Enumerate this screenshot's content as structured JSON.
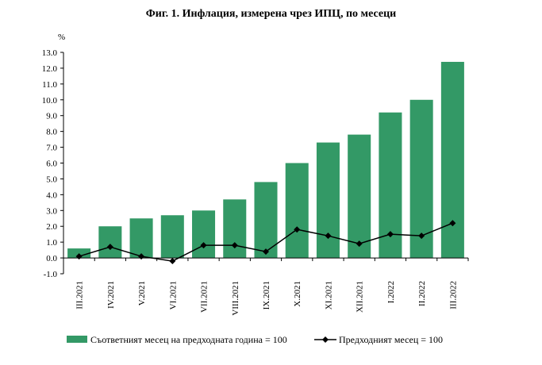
{
  "chart_data": {
    "type": "bar",
    "title": "Фиг. 1. Инфлация, измерена чрез ИПЦ, по месеци",
    "ylabel": "%",
    "ylim": [
      -1.0,
      13.0
    ],
    "yticks": [
      "-1.0",
      "0.0",
      "1.0",
      "2.0",
      "3.0",
      "4.0",
      "5.0",
      "6.0",
      "7.0",
      "8.0",
      "9.0",
      "10.0",
      "11.0",
      "12.0",
      "13.0"
    ],
    "categories": [
      "III.2021",
      "IV.2021",
      "V.2021",
      "VI.2021",
      "VII.2021",
      "VIII.2021",
      "IX.2021",
      "X.2021",
      "XI.2021",
      "XII.2021",
      "I.2022",
      "II.2022",
      "III.2022"
    ],
    "series": [
      {
        "name": "Съответният месец на предходната година = 100",
        "type": "bar",
        "color": "#339966",
        "values": [
          0.6,
          2.0,
          2.5,
          2.7,
          3.0,
          3.7,
          4.8,
          6.0,
          7.3,
          7.8,
          9.2,
          10.0,
          12.4
        ]
      },
      {
        "name": "Предходният месец = 100",
        "type": "line",
        "color": "#000000",
        "values": [
          0.1,
          0.7,
          0.1,
          -0.2,
          0.8,
          0.8,
          0.4,
          1.8,
          1.4,
          0.9,
          1.5,
          1.4,
          2.2
        ]
      }
    ],
    "grid": false,
    "legend": "bottom"
  }
}
